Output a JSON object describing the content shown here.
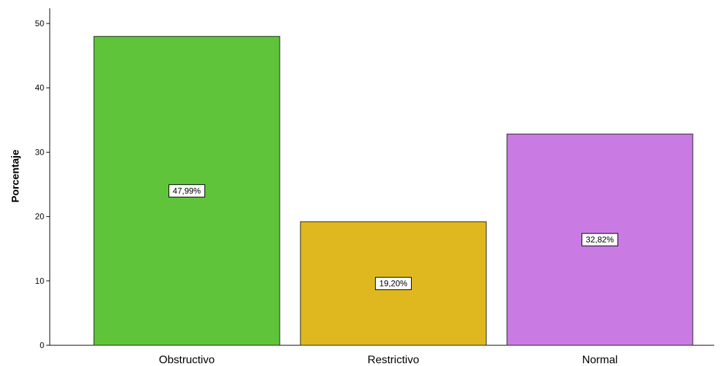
{
  "chart_data": {
    "type": "bar",
    "title": "",
    "xlabel": "",
    "ylabel": "Porcentaje",
    "ylim": [
      0,
      50
    ],
    "yticks": [
      0,
      10,
      20,
      30,
      40,
      50
    ],
    "grid": false,
    "categories": [
      "Obstructivo",
      "Restrictivo",
      "Normal"
    ],
    "values": [
      47.99,
      19.2,
      32.82
    ],
    "data_labels": [
      "47,99%",
      "19,20%",
      "32,82%"
    ],
    "colors": [
      "#5fc43a",
      "#dfb820",
      "#c97be3"
    ]
  }
}
